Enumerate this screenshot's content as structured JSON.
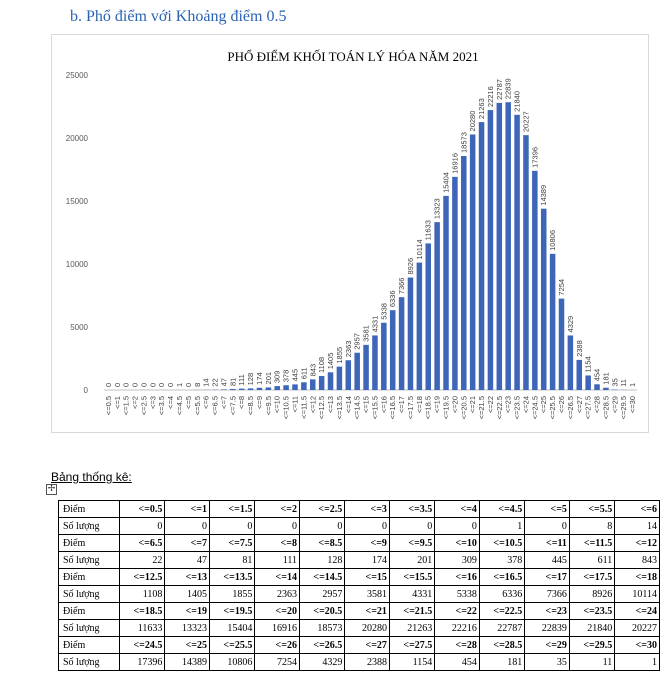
{
  "heading": "b.  Phổ điểm với Khoảng điểm 0.5",
  "table_caption": "Bảng thống kê:",
  "table": {
    "label_score": "Điểm",
    "label_count": "Số lượng",
    "rows": [
      {
        "scores": [
          "<=0.5",
          "<=1",
          "<=1.5",
          "<=2",
          "<=2.5",
          "<=3",
          "<=3.5",
          "<=4",
          "<=4.5",
          "<=5",
          "<=5.5",
          "<=6"
        ],
        "counts": [
          "0",
          "0",
          "0",
          "0",
          "0",
          "0",
          "0",
          "0",
          "1",
          "0",
          "8",
          "14"
        ]
      },
      {
        "scores": [
          "<=6.5",
          "<=7",
          "<=7.5",
          "<=8",
          "<=8.5",
          "<=9",
          "<=9.5",
          "<=10",
          "<=10.5",
          "<=11",
          "<=11.5",
          "<=12"
        ],
        "counts": [
          "22",
          "47",
          "81",
          "111",
          "128",
          "174",
          "201",
          "309",
          "378",
          "445",
          "611",
          "843"
        ]
      },
      {
        "scores": [
          "<=12.5",
          "<=13",
          "<=13.5",
          "<=14",
          "<=14.5",
          "<=15",
          "<=15.5",
          "<=16",
          "<=16.5",
          "<=17",
          "<=17.5",
          "<=18"
        ],
        "counts": [
          "1108",
          "1405",
          "1855",
          "2363",
          "2957",
          "3581",
          "4331",
          "5338",
          "6336",
          "7366",
          "8926",
          "10114"
        ]
      },
      {
        "scores": [
          "<=18.5",
          "<=19",
          "<=19.5",
          "<=20",
          "<=20.5",
          "<=21",
          "<=21.5",
          "<=22",
          "<=22.5",
          "<=23",
          "<=23.5",
          "<=24"
        ],
        "counts": [
          "11633",
          "13323",
          "15404",
          "16916",
          "18573",
          "20280",
          "21263",
          "22216",
          "22787",
          "22839",
          "21840",
          "20227"
        ]
      },
      {
        "scores": [
          "<=24.5",
          "<=25",
          "<=25.5",
          "<=26",
          "<=26.5",
          "<=27",
          "<=27.5",
          "<=28",
          "<=28.5",
          "<=29",
          "<=29.5",
          "<=30"
        ],
        "counts": [
          "17396",
          "14389",
          "10806",
          "7254",
          "4329",
          "2388",
          "1154",
          "454",
          "181",
          "35",
          "11",
          "1"
        ]
      }
    ]
  },
  "chart_data": {
    "type": "bar",
    "title": "PHỔ ĐIỂM KHỐI TOÁN LÝ HÓA NĂM 2021",
    "xlabel": "",
    "ylabel": "",
    "ylim": [
      0,
      25000
    ],
    "yticks": [
      "0",
      "5000",
      "10000",
      "15000",
      "20000",
      "25000"
    ],
    "grid": false,
    "legend": "none",
    "bar_color": "#3d66b8",
    "categories": [
      "<=0.5",
      "<=1",
      "<=1.5",
      "<=2",
      "<=2.5",
      "<=3",
      "<=3.5",
      "<=4",
      "<=4.5",
      "<=5",
      "<=5.5",
      "<=6",
      "<=6.5",
      "<=7",
      "<=7.5",
      "<=8",
      "<=8.5",
      "<=9",
      "<=9.5",
      "<=10",
      "<=10.5",
      "<=11",
      "<=11.5",
      "<=12",
      "<=12.5",
      "<=13",
      "<=13.5",
      "<=14",
      "<=14.5",
      "<=15",
      "<=15.5",
      "<=16",
      "<=16.5",
      "<=17",
      "<=17.5",
      "<=18",
      "<=18.5",
      "<=19",
      "<=19.5",
      "<=20",
      "<=20.5",
      "<=21",
      "<=21.5",
      "<=22",
      "<=22.5",
      "<=23",
      "<=23.5",
      "<=24",
      "<=24.5",
      "<=25",
      "<=25.5",
      "<=26",
      "<=26.5",
      "<=27",
      "<=27.5",
      "<=28",
      "<=28.5",
      "<=29",
      "<=29.5",
      "<=30"
    ],
    "values": [
      0,
      0,
      0,
      0,
      0,
      0,
      0,
      0,
      1,
      0,
      8,
      14,
      22,
      47,
      81,
      111,
      128,
      174,
      201,
      309,
      378,
      445,
      611,
      843,
      1108,
      1405,
      1855,
      2363,
      2957,
      3581,
      4331,
      5338,
      6336,
      7366,
      8926,
      10114,
      11633,
      13323,
      15404,
      16916,
      18573,
      20280,
      21263,
      22216,
      22787,
      22839,
      21840,
      20227,
      17396,
      14389,
      10806,
      7254,
      4329,
      2388,
      1154,
      454,
      181,
      35,
      11,
      1
    ]
  }
}
